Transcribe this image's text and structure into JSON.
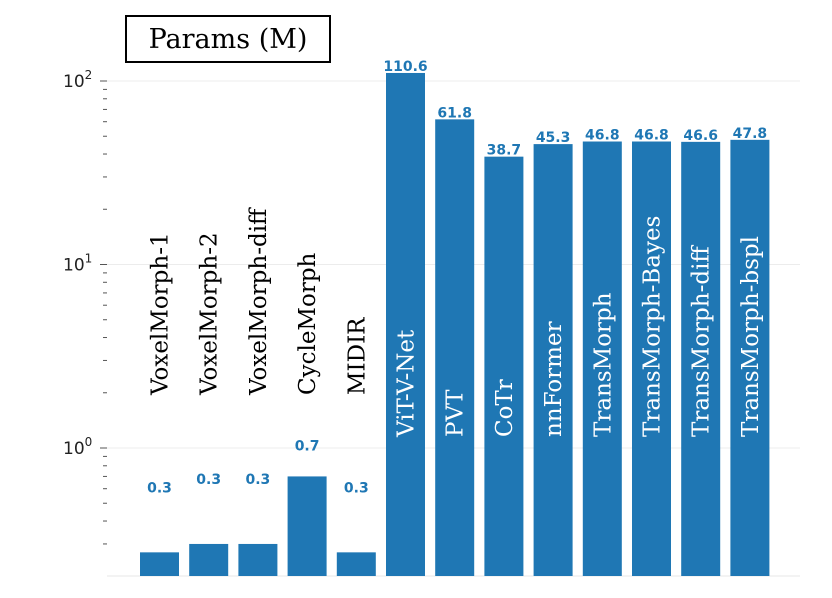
{
  "chart_data": {
    "type": "bar",
    "title": "Params (M)",
    "yscale": "log",
    "ylim": [
      0.1,
      150
    ],
    "grid": true,
    "bar_color": "#1f77b4",
    "categories": [
      "VoxelMorph-1",
      "VoxelMorph-2",
      "VoxelMorph-diff",
      "CycleMorph",
      "MIDIR",
      "ViT-V-Net",
      "PVT",
      "CoTr",
      "nnFormer",
      "TransMorph",
      "TransMorph-Bayes",
      "TransMorph-diff",
      "TransMorph-bspl"
    ],
    "values": [
      0.27,
      0.3,
      0.3,
      0.7,
      0.27,
      110.6,
      61.8,
      38.7,
      45.3,
      46.8,
      46.8,
      46.6,
      47.8
    ],
    "value_labels": [
      "0.3",
      "0.3",
      "0.3",
      "0.7",
      "0.3",
      "110.6",
      "61.8",
      "38.7",
      "45.3",
      "46.8",
      "46.8",
      "46.6",
      "47.8"
    ],
    "yticks": [
      {
        "base": "10",
        "exp": "2",
        "value": 100
      },
      {
        "base": "10",
        "exp": "1",
        "value": 10
      },
      {
        "base": "10",
        "exp": "0",
        "value": 1
      }
    ]
  }
}
